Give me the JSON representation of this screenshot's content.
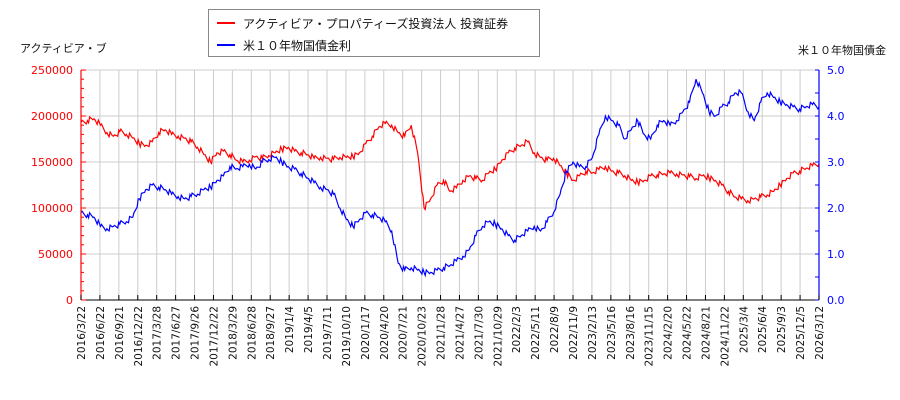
{
  "legend": {
    "items": [
      {
        "label": "アクティビア・プロパティーズ投資法人 投資証券",
        "color": "#ff0000"
      },
      {
        "label": "米１０年物国債金利",
        "color": "#0000ff"
      }
    ]
  },
  "axes": {
    "left_title": "アクティビア・ブ",
    "right_title": "米１０年物国債金"
  },
  "chart_data": {
    "type": "line",
    "title": "",
    "xlabel": "",
    "ylabel_left": "アクティビア・ブ",
    "ylabel_right": "米１０年物国債金",
    "grid": true,
    "legend_position": "top-center",
    "x_ticks": [
      "2016/3/22",
      "2016/6/22",
      "2016/9/21",
      "2016/12/22",
      "2017/3/28",
      "2017/6/27",
      "2017/9/26",
      "2017/12/22",
      "2018/3/29",
      "2018/6/28",
      "2018/9/27",
      "2019/1/4",
      "2019/4/5",
      "2019/7/11",
      "2019/10/10",
      "2020/1/17",
      "2020/4/20",
      "2020/7/21",
      "2020/10/23",
      "2021/1/28",
      "2021/4/27",
      "2021/7/30",
      "2021/10/29",
      "2022/2/3",
      "2022/5/11",
      "2022/8/9",
      "2022/11/9",
      "2023/2/13",
      "2023/5/16",
      "2023/8/16",
      "2023/11/15",
      "2024/2/20",
      "2024/5/22",
      "2024/8/21",
      "2024/11/22",
      "2025/3/4",
      "2025/6/4",
      "2025/9/3",
      "2025/12/5",
      "2026/3/12"
    ],
    "y_left": {
      "ticks": [
        0,
        50000,
        100000,
        150000,
        200000,
        250000
      ],
      "ylim": [
        0,
        250000
      ],
      "color": "#ff0000"
    },
    "y_right": {
      "ticks": [
        "0.0",
        "1.0",
        "2.0",
        "3.0",
        "4.0",
        "5.0"
      ],
      "ylim": [
        0,
        5
      ],
      "color": "#0000ff"
    },
    "series": [
      {
        "name": "アクティビア・プロパティーズ投資法人 投資証券",
        "axis": "left",
        "color": "#ff0000",
        "values": [
          193000,
          195000,
          197000,
          190000,
          182000,
          178000,
          183000,
          180000,
          176000,
          170000,
          168000,
          172000,
          182000,
          185000,
          180000,
          178000,
          176000,
          172000,
          166000,
          158000,
          150000,
          160000,
          162000,
          158000,
          152000,
          150000,
          152000,
          156000,
          154000,
          157000,
          160000,
          164000,
          166000,
          162000,
          160000,
          158000,
          154000,
          155000,
          154000,
          153000,
          155000,
          155000,
          156000,
          160000,
          170000,
          178000,
          188000,
          192000,
          190000,
          182000,
          178000,
          190000,
          160000,
          100000,
          110000,
          125000,
          130000,
          118000,
          122000,
          130000,
          135000,
          132000,
          130000,
          138000,
          142000,
          152000,
          160000,
          165000,
          168000,
          172000,
          160000,
          155000,
          152000,
          154000,
          146000,
          138000,
          130000,
          135000,
          140000,
          138000,
          142000,
          145000,
          140000,
          138000,
          135000,
          130000,
          128000,
          130000,
          135000,
          136000,
          137000,
          138000,
          137000,
          136000,
          134000,
          132000,
          135000,
          133000,
          130000,
          125000,
          118000,
          112000,
          110000,
          108000,
          110000,
          112000,
          114000,
          118000,
          125000,
          132000,
          138000,
          140000,
          143000,
          146000,
          148000
        ]
      },
      {
        "name": "米１０年物国債金利",
        "axis": "right",
        "color": "#0000ff",
        "values": [
          1.9,
          1.85,
          1.8,
          1.6,
          1.55,
          1.6,
          1.65,
          1.7,
          1.8,
          2.2,
          2.4,
          2.5,
          2.45,
          2.4,
          2.3,
          2.25,
          2.2,
          2.25,
          2.3,
          2.4,
          2.45,
          2.6,
          2.7,
          2.9,
          2.85,
          2.9,
          2.95,
          2.85,
          3.0,
          3.05,
          3.1,
          3.0,
          2.9,
          2.85,
          2.75,
          2.65,
          2.55,
          2.45,
          2.4,
          2.3,
          2.0,
          1.75,
          1.6,
          1.75,
          1.9,
          1.85,
          1.8,
          1.7,
          1.5,
          0.8,
          0.65,
          0.7,
          0.65,
          0.6,
          0.6,
          0.65,
          0.7,
          0.75,
          0.85,
          0.95,
          1.1,
          1.4,
          1.6,
          1.7,
          1.65,
          1.55,
          1.4,
          1.3,
          1.4,
          1.5,
          1.6,
          1.5,
          1.7,
          1.9,
          2.3,
          2.8,
          3.0,
          2.9,
          2.9,
          3.1,
          3.6,
          4.0,
          3.9,
          3.8,
          3.5,
          3.7,
          3.9,
          3.6,
          3.5,
          3.8,
          3.9,
          3.8,
          3.9,
          4.1,
          4.3,
          4.8,
          4.5,
          4.1,
          4.0,
          4.2,
          4.3,
          4.5,
          4.5,
          4.1,
          3.9,
          4.3,
          4.5,
          4.4,
          4.3,
          4.25,
          4.2,
          4.15,
          4.2,
          4.25,
          4.2
        ]
      }
    ]
  }
}
